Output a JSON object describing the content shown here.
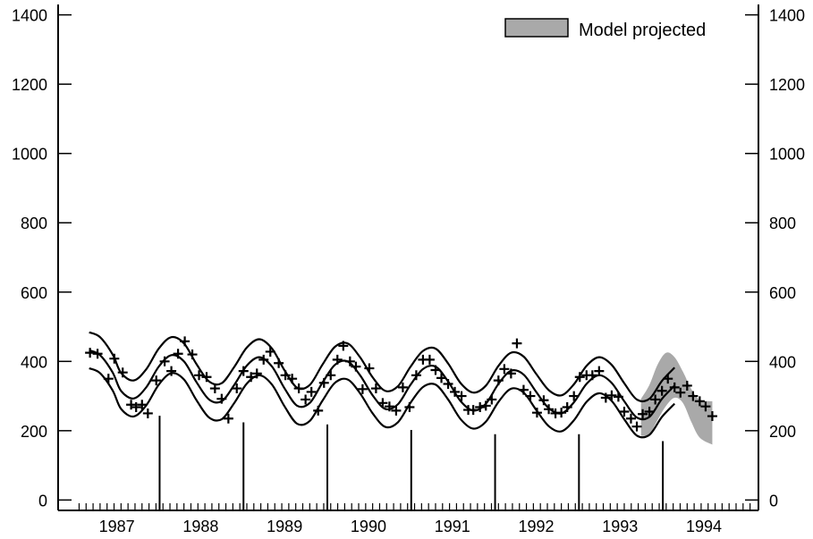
{
  "chart_data": {
    "type": "line",
    "title": "",
    "xlabel": "",
    "ylabel": "",
    "xlim": [
      1986.25,
      1994.6
    ],
    "ylim": [
      -30,
      1430
    ],
    "y_ticks": [
      0,
      200,
      400,
      600,
      800,
      1000,
      1200,
      1400
    ],
    "x_tick_labels": [
      "1987",
      "1988",
      "1989",
      "1990",
      "1991",
      "1992",
      "1993",
      "1994"
    ],
    "x_tick_label_positions": [
      1986.95,
      1987.95,
      1988.95,
      1989.95,
      1990.95,
      1991.95,
      1992.95,
      1993.95
    ],
    "grid": false,
    "legend": {
      "position": "top-right",
      "entries": [
        {
          "label": "Model projected",
          "color": "#a9a9a9"
        }
      ]
    },
    "fit_start": 1986.62,
    "fit_end": 1993.6,
    "projection_start": 1993.2,
    "projection_end": 1994.05,
    "fitted_line": {
      "x": [
        1986.62,
        1986.75,
        1986.9,
        1987.0,
        1987.15,
        1987.3,
        1987.45,
        1987.6,
        1987.75,
        1987.9,
        1988.05,
        1988.2,
        1988.35,
        1988.5,
        1988.65,
        1988.8,
        1988.95,
        1989.1,
        1989.25,
        1989.4,
        1989.55,
        1989.7,
        1989.85,
        1990.0,
        1990.15,
        1990.3,
        1990.45,
        1990.6,
        1990.75,
        1990.9,
        1991.05,
        1991.2,
        1991.35,
        1991.5,
        1991.65,
        1991.8,
        1991.95,
        1992.1,
        1992.25,
        1992.4,
        1992.55,
        1992.7,
        1992.85,
        1993.0,
        1993.15,
        1993.3,
        1993.45,
        1993.6
      ],
      "y": [
        432,
        418,
        368,
        315,
        293,
        325,
        385,
        418,
        400,
        340,
        290,
        285,
        332,
        388,
        412,
        385,
        322,
        272,
        280,
        338,
        390,
        400,
        360,
        302,
        263,
        276,
        332,
        378,
        385,
        342,
        285,
        258,
        278,
        335,
        373,
        362,
        312,
        265,
        250,
        282,
        335,
        360,
        338,
        285,
        238,
        240,
        292,
        330
      ]
    },
    "observed_points": {
      "x": [
        1986.63,
        1986.72,
        1986.85,
        1986.92,
        1987.02,
        1987.12,
        1987.18,
        1987.25,
        1987.32,
        1987.42,
        1987.52,
        1987.6,
        1987.68,
        1987.76,
        1987.85,
        1987.93,
        1988.02,
        1988.12,
        1988.2,
        1988.28,
        1988.38,
        1988.46,
        1988.55,
        1988.62,
        1988.7,
        1988.78,
        1988.88,
        1988.96,
        1989.04,
        1989.12,
        1989.2,
        1989.27,
        1989.35,
        1989.42,
        1989.5,
        1989.58,
        1989.65,
        1989.73,
        1989.8,
        1989.88,
        1989.96,
        1990.04,
        1990.12,
        1990.2,
        1990.28,
        1990.36,
        1990.44,
        1990.52,
        1990.6,
        1990.68,
        1990.75,
        1990.82,
        1990.9,
        1990.98,
        1991.06,
        1991.14,
        1991.2,
        1991.28,
        1991.35,
        1991.42,
        1991.5,
        1991.57,
        1991.65,
        1991.72,
        1991.8,
        1991.88,
        1991.96,
        1992.04,
        1992.1,
        1992.18,
        1992.25,
        1992.32,
        1992.4,
        1992.47,
        1992.55,
        1992.62,
        1992.7,
        1992.78,
        1992.85,
        1992.93,
        1993.0,
        1993.08,
        1993.15,
        1993.22,
        1993.3,
        1993.37,
        1993.45,
        1993.52,
        1993.6,
        1993.67,
        1993.75,
        1993.82,
        1993.9,
        1993.97,
        1994.05
      ],
      "y": [
        425,
        422,
        350,
        408,
        368,
        275,
        268,
        275,
        250,
        345,
        400,
        372,
        422,
        458,
        420,
        360,
        355,
        322,
        292,
        235,
        322,
        372,
        355,
        365,
        405,
        428,
        395,
        360,
        350,
        322,
        290,
        312,
        258,
        338,
        360,
        405,
        445,
        400,
        385,
        320,
        380,
        322,
        280,
        270,
        258,
        325,
        268,
        360,
        405,
        405,
        375,
        352,
        335,
        312,
        300,
        260,
        260,
        268,
        272,
        290,
        345,
        378,
        365,
        452,
        318,
        300,
        252,
        288,
        262,
        250,
        252,
        268,
        300,
        355,
        360,
        360,
        372,
        295,
        302,
        298,
        255,
        235,
        212,
        248,
        255,
        290,
        315,
        350,
        325,
        310,
        330,
        300,
        285,
        270,
        242
      ]
    },
    "projection_band": {
      "x": [
        1993.2,
        1993.3,
        1993.4,
        1993.5,
        1993.6,
        1993.7,
        1993.8,
        1993.9,
        1994.05
      ],
      "upper": [
        292,
        332,
        392,
        425,
        412,
        370,
        320,
        290,
        285
      ],
      "lower": [
        185,
        190,
        232,
        272,
        295,
        280,
        225,
        180,
        160
      ]
    },
    "band_offset": 52,
    "spikes": [
      {
        "x": 1987.46,
        "height": 243
      },
      {
        "x": 1988.46,
        "height": 224
      },
      {
        "x": 1989.46,
        "height": 218
      },
      {
        "x": 1990.46,
        "height": 202
      },
      {
        "x": 1991.46,
        "height": 190
      },
      {
        "x": 1992.46,
        "height": 190
      },
      {
        "x": 1993.46,
        "height": 170
      }
    ]
  }
}
